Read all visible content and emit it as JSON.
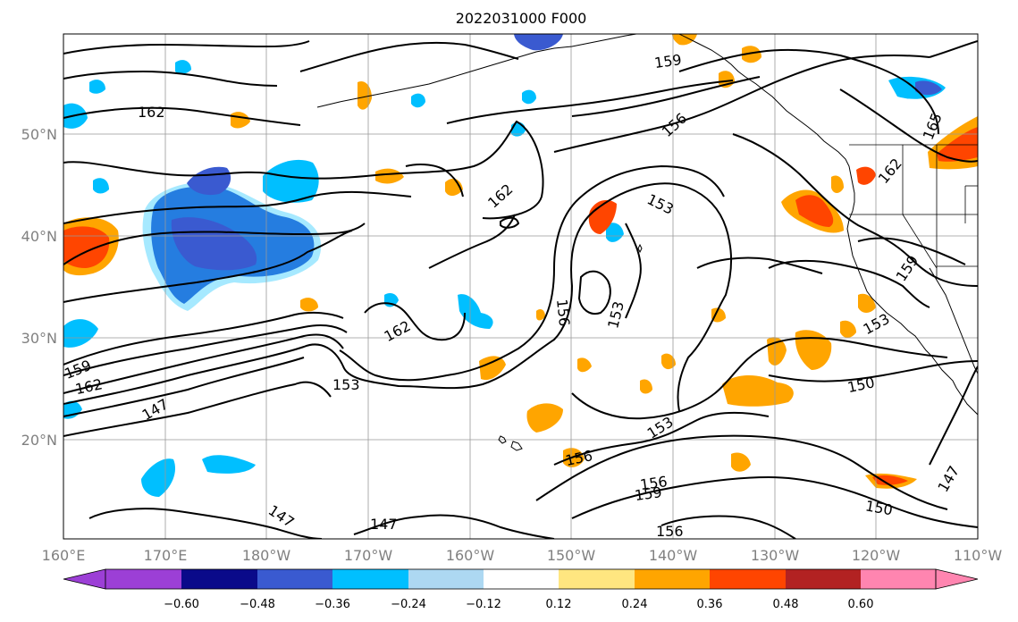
{
  "title": "2022031000 F000",
  "map": {
    "lon_ticks": [
      "160°E",
      "170°E",
      "180°W",
      "170°W",
      "160°W",
      "150°W",
      "140°W",
      "130°W",
      "120°W",
      "110°W"
    ],
    "lat_ticks": [
      "50°N",
      "40°N",
      "30°N",
      "20°N"
    ],
    "background_color": "#ffffff",
    "grid_color": "#999999",
    "contour_labels": [
      "162",
      "159",
      "156",
      "162",
      "162",
      "165",
      "153",
      "159",
      "156",
      "153",
      "162",
      "153",
      "153",
      "150",
      "153",
      "156",
      "156",
      "159",
      "147",
      "162",
      "147",
      "147",
      "150",
      "156",
      "147",
      "159"
    ]
  },
  "colorbar": {
    "ticks": [
      "−0.60",
      "−0.48",
      "−0.36",
      "−0.24",
      "−0.12",
      "0.12",
      "0.24",
      "0.36",
      "0.48",
      "0.60"
    ],
    "colors": [
      "#9c3fd6",
      "#0a0a8a",
      "#3a5ad0",
      "#00bfff",
      "#add8f2",
      "#ffffff",
      "#ffe680",
      "#ffa500",
      "#ff4500",
      "#b22222",
      "#ff85b0"
    ]
  }
}
